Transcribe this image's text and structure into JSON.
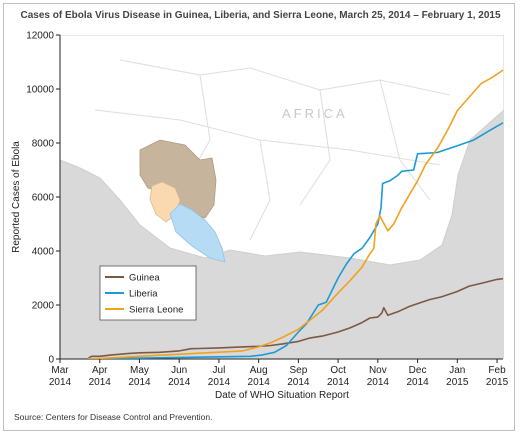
{
  "chart_data": {
    "type": "line",
    "title": "Cases of Ebola Virus Disease in Guinea, Liberia, and Sierra Leone, March 25, 2014 – February 1, 2015",
    "xlabel": "Date of WHO Situation Report",
    "ylabel": "Reported Cases of Ebola",
    "ylim": [
      0,
      12000
    ],
    "yticks": [
      "0",
      "2000",
      "4000",
      "6000",
      "8000",
      "10000",
      "12000"
    ],
    "xticks": [
      {
        "month": "Mar",
        "year": "2014",
        "t": 0
      },
      {
        "month": "Apr",
        "year": "2014",
        "t": 1
      },
      {
        "month": "May",
        "year": "2014",
        "t": 2
      },
      {
        "month": "Jun",
        "year": "2014",
        "t": 3
      },
      {
        "month": "Jul",
        "year": "2014",
        "t": 4
      },
      {
        "month": "Aug",
        "year": "2014",
        "t": 5
      },
      {
        "month": "Sep",
        "year": "2014",
        "t": 6
      },
      {
        "month": "Oct",
        "year": "2014",
        "t": 7
      },
      {
        "month": "Nov",
        "year": "2014",
        "t": 8
      },
      {
        "month": "Dec",
        "year": "2014",
        "t": 9
      },
      {
        "month": "Jan",
        "year": "2015",
        "t": 10
      },
      {
        "month": "Feb",
        "year": "2015",
        "t": 11
      }
    ],
    "legend_position": "bottom-left",
    "grid": false,
    "map_label": "AFRICA",
    "series": [
      {
        "name": "Guinea",
        "color": "#7b5a44",
        "points": [
          [
            0.72,
            40
          ],
          [
            0.8,
            100
          ],
          [
            1.0,
            100
          ],
          [
            1.3,
            150
          ],
          [
            1.7,
            200
          ],
          [
            2.0,
            230
          ],
          [
            2.5,
            250
          ],
          [
            3.0,
            300
          ],
          [
            3.3,
            380
          ],
          [
            3.5,
            390
          ],
          [
            4.0,
            410
          ],
          [
            4.5,
            440
          ],
          [
            5.0,
            470
          ],
          [
            5.3,
            500
          ],
          [
            5.6,
            560
          ],
          [
            6.0,
            650
          ],
          [
            6.3,
            780
          ],
          [
            6.6,
            850
          ],
          [
            7.0,
            1000
          ],
          [
            7.3,
            1150
          ],
          [
            7.6,
            1350
          ],
          [
            7.8,
            1520
          ],
          [
            8.0,
            1550
          ],
          [
            8.1,
            1700
          ],
          [
            8.15,
            1900
          ],
          [
            8.25,
            1620
          ],
          [
            8.5,
            1750
          ],
          [
            8.8,
            1950
          ],
          [
            9.0,
            2050
          ],
          [
            9.3,
            2200
          ],
          [
            9.6,
            2300
          ],
          [
            10.0,
            2500
          ],
          [
            10.3,
            2700
          ],
          [
            10.6,
            2800
          ],
          [
            11.0,
            2950
          ],
          [
            11.15,
            2975
          ]
        ]
      },
      {
        "name": "Liberia",
        "color": "#1c9ad6",
        "points": [
          [
            0.72,
            0
          ],
          [
            4.8,
            100
          ],
          [
            5.1,
            150
          ],
          [
            5.4,
            250
          ],
          [
            5.7,
            500
          ],
          [
            6.0,
            1000
          ],
          [
            6.2,
            1300
          ],
          [
            6.5,
            2000
          ],
          [
            6.7,
            2100
          ],
          [
            7.0,
            3000
          ],
          [
            7.2,
            3500
          ],
          [
            7.4,
            3900
          ],
          [
            7.6,
            4100
          ],
          [
            7.8,
            4500
          ],
          [
            8.0,
            5000
          ],
          [
            8.08,
            5600
          ],
          [
            8.12,
            6500
          ],
          [
            8.3,
            6600
          ],
          [
            8.5,
            6800
          ],
          [
            8.6,
            6950
          ],
          [
            8.9,
            7000
          ],
          [
            9.0,
            7600
          ],
          [
            9.5,
            7650
          ],
          [
            10.0,
            7900
          ],
          [
            10.4,
            8100
          ],
          [
            10.8,
            8450
          ],
          [
            11.15,
            8750
          ]
        ]
      },
      {
        "name": "Sierra Leone",
        "color": "#f0a21e",
        "points": [
          [
            0.72,
            0
          ],
          [
            4.6,
            300
          ],
          [
            5.0,
            450
          ],
          [
            5.3,
            600
          ],
          [
            5.6,
            800
          ],
          [
            6.0,
            1100
          ],
          [
            6.3,
            1450
          ],
          [
            6.6,
            1800
          ],
          [
            7.0,
            2450
          ],
          [
            7.3,
            2900
          ],
          [
            7.6,
            3400
          ],
          [
            7.8,
            3900
          ],
          [
            7.9,
            4100
          ],
          [
            7.95,
            5000
          ],
          [
            8.05,
            5300
          ],
          [
            8.25,
            4750
          ],
          [
            8.4,
            5000
          ],
          [
            8.6,
            5600
          ],
          [
            9.0,
            6600
          ],
          [
            9.1,
            6900
          ],
          [
            9.2,
            7200
          ],
          [
            9.5,
            7800
          ],
          [
            9.8,
            8600
          ],
          [
            10.0,
            9200
          ],
          [
            10.3,
            9700
          ],
          [
            10.6,
            10200
          ],
          [
            10.9,
            10450
          ],
          [
            11.15,
            10700
          ]
        ]
      }
    ]
  },
  "source": "Source: Centers for Disease Control and Prevention."
}
